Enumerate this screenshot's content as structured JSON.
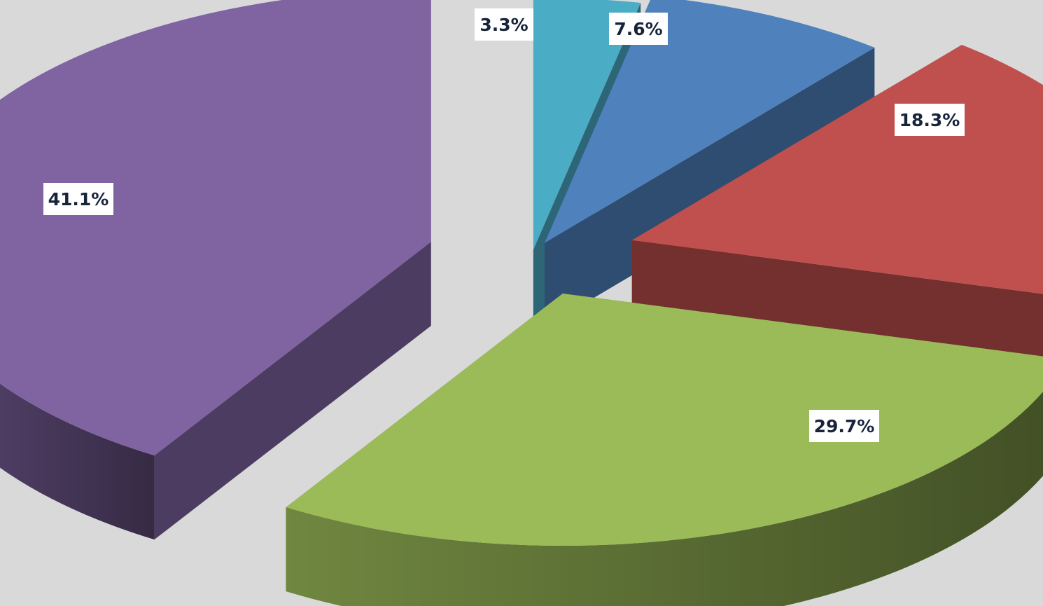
{
  "chart_data": {
    "type": "pie",
    "style": "3d-exploded",
    "title": "",
    "slices": [
      {
        "label": "3.3%",
        "value": 3.3,
        "color": "#4bacc6"
      },
      {
        "label": "7.6%",
        "value": 7.6,
        "color": "#4f81bd"
      },
      {
        "label": "18.3%",
        "value": 18.3,
        "color": "#c0504d"
      },
      {
        "label": "29.7%",
        "value": 29.7,
        "color": "#9bbb59"
      },
      {
        "label": "41.1%",
        "value": 41.1,
        "color": "#8064a2"
      }
    ],
    "legend": "none",
    "background": "#d9d9d9"
  }
}
